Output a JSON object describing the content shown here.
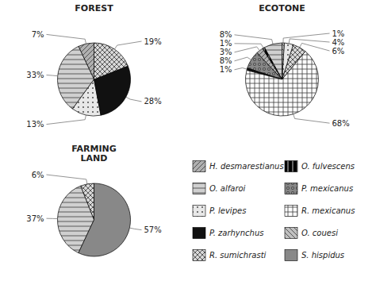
{
  "chart_data": [
    {
      "type": "pie",
      "title": "FOREST",
      "categories": [
        "H. desmarestianus",
        "O. alfaroi",
        "P. levipes",
        "P. zarhynchus",
        "R. sumichrasti"
      ],
      "values": [
        7,
        33,
        13,
        28,
        19
      ],
      "value_labels": [
        "7%",
        "33%",
        "13%",
        "28%",
        "19%"
      ],
      "colors": [
        "#b0b0b0",
        "#d0d0d0",
        "#e8e8e8",
        "#111111",
        "#d8d8d8"
      ],
      "data_labels": true,
      "legend": "lower right"
    },
    {
      "type": "pie",
      "title": "ECOTONE",
      "categories": [
        "O. alfaroi",
        "O. fulvescens",
        "H. desmarestianus",
        "P. mexicanus",
        "P. zarhynchus",
        "R. mexicanus",
        "R. sumichrasti",
        "P. levipes",
        "O. couesi"
      ],
      "values": [
        8,
        1,
        3,
        8,
        1,
        68,
        6,
        4,
        1
      ],
      "value_labels": [
        "8%",
        "1%",
        "3%",
        "8%",
        "1%",
        "68%",
        "6%",
        "4%",
        "1%"
      ],
      "colors": [
        "#d0d0d0",
        "#000000",
        "#b0b0b0",
        "#888888",
        "#111111",
        "#ffffff",
        "#d8d8d8",
        "#e8e8e8",
        "#c0c0c0"
      ],
      "data_labels": true,
      "legend": "lower right"
    },
    {
      "type": "pie",
      "title": "FARMING\nLAND",
      "categories": [
        "R. sumichrasti",
        "O. alfaroi",
        "S. hispidus"
      ],
      "values": [
        6,
        37,
        57
      ],
      "value_labels": [
        "6%",
        "37%",
        "57%"
      ],
      "colors": [
        "#d8d8d8",
        "#d0d0d0",
        "#888888"
      ],
      "data_labels": true,
      "legend": "lower right"
    }
  ]
}
